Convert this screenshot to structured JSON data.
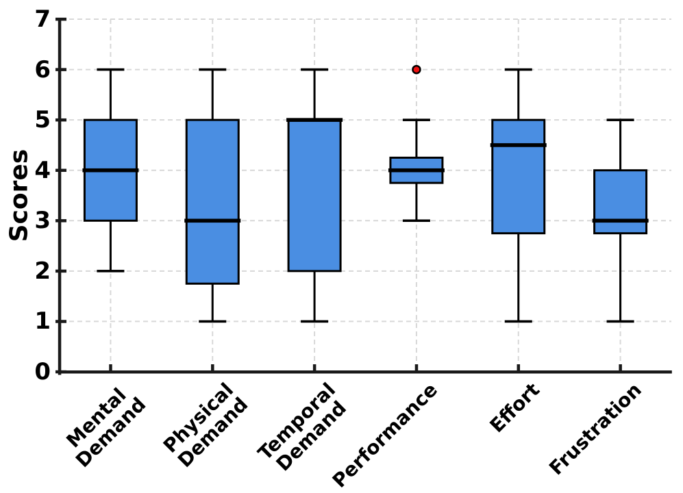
{
  "chart_data": {
    "type": "box",
    "title": "",
    "xlabel": "",
    "ylabel": "Scores",
    "ylim": [
      0,
      7
    ],
    "yticks": [
      "0",
      "1",
      "2",
      "3",
      "4",
      "5",
      "6",
      "7"
    ],
    "grid": "dashed gridlines on both axes, horizontal at each integer score and vertical at each category",
    "legend": "none",
    "categories": [
      "Mental Demand",
      "Physical Demand",
      "Temporal Demand",
      "Performance",
      "Effort",
      "Frustration"
    ],
    "category_label_lines": [
      [
        "Mental",
        "Demand"
      ],
      [
        "Physical",
        "Demand"
      ],
      [
        "Temporal",
        "Demand"
      ],
      [
        "Performance"
      ],
      [
        "Effort"
      ],
      [
        "Frustration"
      ]
    ],
    "series": [
      {
        "name": "Mental Demand",
        "whisker_low": 2,
        "q1": 3,
        "median": 4,
        "q3": 5,
        "whisker_high": 6,
        "outliers": []
      },
      {
        "name": "Physical Demand",
        "whisker_low": 1,
        "q1": 1.75,
        "median": 3,
        "q3": 5,
        "whisker_high": 6,
        "outliers": []
      },
      {
        "name": "Temporal Demand",
        "whisker_low": 1,
        "q1": 2,
        "median": 5,
        "q3": 5,
        "whisker_high": 6,
        "outliers": []
      },
      {
        "name": "Performance",
        "whisker_low": 3,
        "q1": 3.75,
        "median": 4,
        "q3": 4.25,
        "whisker_high": 5,
        "outliers": [
          6
        ]
      },
      {
        "name": "Effort",
        "whisker_low": 1,
        "q1": 2.75,
        "median": 4.5,
        "q3": 5,
        "whisker_high": 6,
        "outliers": []
      },
      {
        "name": "Frustration",
        "whisker_low": 1,
        "q1": 2.75,
        "median": 3,
        "q3": 4,
        "whisker_high": 5,
        "outliers": []
      }
    ],
    "colors": {
      "box_fill": "#4A8EE2",
      "box_edge": "#000000",
      "median_line": "#000000",
      "whisker": "#000000",
      "outlier_fill": "#EE1111",
      "outlier_edge": "#000000",
      "grid_line": "#D8D8D8",
      "axis_spine": "#1A1A1A",
      "background": "#FFFFFF"
    }
  }
}
